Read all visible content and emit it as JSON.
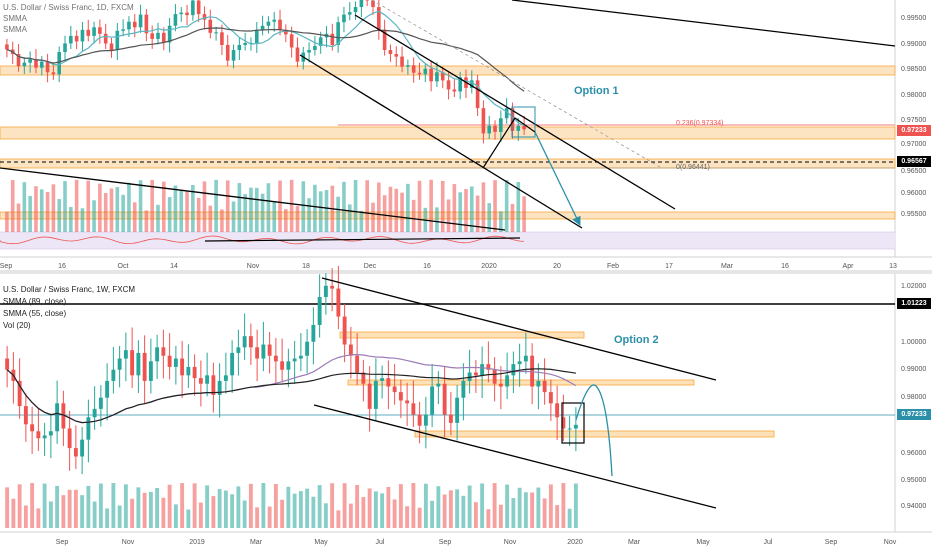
{
  "colors": {
    "up": "#26a69a",
    "down": "#ef5350",
    "zone": "#f7a93b",
    "accent": "#2b8fa8",
    "black": "#000000"
  },
  "top_chart": {
    "title": "U.S. Dollar / Swiss Franc, 1D, FXCM",
    "legend": [
      "SMMA",
      "SMMA"
    ],
    "option_label": "Option 1",
    "fib_labels": [
      "0.236(0.97334)",
      "0(0.96441)"
    ],
    "price_ticks": [
      "0.99500",
      "0.99000",
      "0.98500",
      "0.98000",
      "0.97500",
      "0.97000",
      "0.96500",
      "0.96000",
      "0.95500"
    ],
    "price_tags": [
      "0.97233",
      "0.96567"
    ],
    "date_ticks": [
      "Sep",
      "16",
      "Oct",
      "14",
      "Nov",
      "18",
      "Dec",
      "16",
      "2020",
      "20",
      "Feb",
      "17",
      "Mar",
      "16",
      "Apr",
      "13"
    ]
  },
  "bottom_chart": {
    "title": "U.S. Dollar / Swiss Franc, 1W, FXCM",
    "legend": [
      "SMMA (89, close)",
      "SMMA (55, close)",
      "Vol (20)"
    ],
    "option_label": "Option 2",
    "price_ticks": [
      "1.02000",
      "1.00000",
      "0.99000",
      "0.98000",
      "0.96000",
      "0.95000",
      "0.94000"
    ],
    "price_tags": [
      "1.01223",
      "0.97233"
    ],
    "date_ticks": [
      "Sep",
      "Nov",
      "2019",
      "Mar",
      "May",
      "Jul",
      "Sep",
      "Nov",
      "2020",
      "Mar",
      "May",
      "Jul",
      "Sep",
      "Nov"
    ]
  },
  "chart_data": [
    {
      "type": "candlestick",
      "title": "U.S. Dollar / Swiss Franc, 1D, FXCM",
      "ylim": [
        0.952,
        0.9975
      ],
      "series": [
        {
          "name": "SMMA"
        },
        {
          "name": "SMMA"
        }
      ],
      "closes": [
        0.9881,
        0.9872,
        0.9848,
        0.9855,
        0.9862,
        0.9845,
        0.9857,
        0.9836,
        0.9832,
        0.9876,
        0.9893,
        0.9908,
        0.9897,
        0.992,
        0.9908,
        0.9925,
        0.9912,
        0.9893,
        0.988,
        0.9918,
        0.9921,
        0.9936,
        0.9925,
        0.995,
        0.9913,
        0.9902,
        0.9914,
        0.9895,
        0.9928,
        0.9951,
        0.9954,
        0.9949,
        0.9978,
        0.9951,
        0.994,
        0.9914,
        0.9915,
        0.989,
        0.9859,
        0.988,
        0.989,
        0.9894,
        0.9894,
        0.992,
        0.9928,
        0.9936,
        0.994,
        0.992,
        0.9911,
        0.9885,
        0.9857,
        0.9875,
        0.988,
        0.9888,
        0.9905,
        0.9912,
        0.989,
        0.9935,
        0.995,
        0.9955,
        0.9965,
        0.9985,
        0.9978,
        0.9965,
        0.992,
        0.988,
        0.9872,
        0.9867,
        0.9847,
        0.985,
        0.9835,
        0.9832,
        0.9843,
        0.9818,
        0.9836,
        0.982,
        0.9802,
        0.9798,
        0.9826,
        0.9805,
        0.982,
        0.9765,
        0.9715,
        0.973,
        0.9718,
        0.9745,
        0.9765,
        0.972,
        0.973,
        0.9723
      ],
      "volume_visible": true,
      "annotations": [
        "Option 1",
        "0.236(0.97334)",
        "0(0.96441)"
      ],
      "price_tags": [
        "0.97233",
        "0.96567"
      ]
    },
    {
      "type": "candlestick",
      "title": "U.S. Dollar / Swiss Franc, 1W, FXCM",
      "ylim": [
        0.934,
        1.0255
      ],
      "series": [
        {
          "name": "SMMA (89, close)"
        },
        {
          "name": "SMMA (55, close)"
        },
        {
          "name": "Vol (20)"
        }
      ],
      "closes": [
        0.992,
        0.988,
        0.979,
        0.9725,
        0.97,
        0.9675,
        0.9685,
        0.97,
        0.98,
        0.971,
        0.964,
        0.961,
        0.967,
        0.975,
        0.978,
        0.982,
        0.988,
        0.992,
        0.996,
        0.999,
        0.99,
        0.998,
        0.988,
        0.995,
        1.0,
        0.997,
        0.993,
        0.996,
        0.99,
        0.993,
        0.989,
        0.987,
        0.99,
        0.983,
        0.988,
        0.99,
        0.998,
        1.0,
        1.004,
        1.0,
        0.996,
        1.001,
        0.997,
        0.995,
        0.992,
        0.995,
        0.996,
        0.997,
        1.002,
        1.008,
        1.018,
        1.022,
        1.021,
        1.011,
        1.001,
        0.997,
        0.991,
        0.987,
        0.978,
        0.988,
        0.989,
        0.986,
        0.984,
        0.981,
        0.98,
        0.976,
        0.972,
        0.976,
        0.986,
        0.987,
        0.976,
        0.973,
        0.982,
        0.988,
        0.991,
        0.99,
        0.994,
        0.992,
        0.987,
        0.986,
        0.99,
        0.994,
        0.995,
        0.997,
        0.986,
        0.988,
        0.984,
        0.98,
        0.975,
        0.971,
        0.971,
        0.9723
      ],
      "volume_visible": true,
      "annotations": [
        "Option 2"
      ],
      "price_tags": [
        "1.01223",
        "0.97233"
      ]
    }
  ]
}
